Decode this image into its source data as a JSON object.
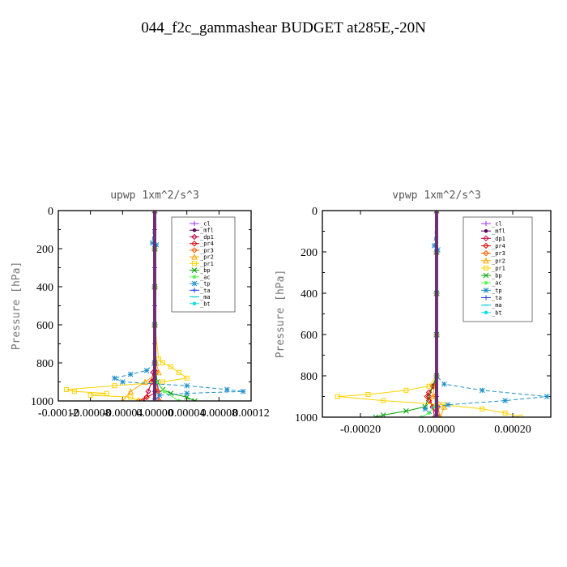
{
  "figure": {
    "title": "044_f2c_gammashear  BUDGET at285E,-20N"
  },
  "legend_entries": [
    {
      "name": "_cl",
      "color": "#9B30FF",
      "marker": "plus"
    },
    {
      "name": "_mfl",
      "color": "#5A005A",
      "marker": "dot"
    },
    {
      "name": "_dp1",
      "color": "#C00040",
      "marker": "diamond"
    },
    {
      "name": "_pr4",
      "color": "#E00000",
      "marker": "diamond"
    },
    {
      "name": "_pr3",
      "color": "#FF5A00",
      "marker": "diamond"
    },
    {
      "name": "_pr2",
      "color": "#FFA500",
      "marker": "triangle"
    },
    {
      "name": "_pr1",
      "color": "#FFD200",
      "marker": "square"
    },
    {
      "name": "_bp",
      "color": "#00A000",
      "marker": "x"
    },
    {
      "name": "_ac",
      "color": "#50FF50",
      "marker": "dot"
    },
    {
      "name": "_tp",
      "color": "#1E90C8",
      "marker": "star"
    },
    {
      "name": "_ta",
      "color": "#1E3CFF",
      "marker": "plus"
    },
    {
      "name": "_ma",
      "color": "#00C8C8",
      "marker": "dash"
    },
    {
      "name": "_bt",
      "color": "#00E0E0",
      "marker": "dot"
    }
  ],
  "chart_data": [
    {
      "type": "line",
      "title": "upwp   1xm^2/s^3",
      "ylabel": "Pressure [hPa]",
      "xlabel": "",
      "xlim": [
        -0.00012,
        0.00012
      ],
      "ylim": [
        1000,
        0
      ],
      "x_tick_labels": [
        "-0.00012",
        "-0.00008",
        "-0.00004",
        "0.00000",
        "0.00004",
        "0.00008",
        "0.00012"
      ],
      "x_ticks": [
        -0.00012,
        -8e-05,
        -4e-05,
        0.0,
        4e-05,
        8e-05,
        0.00012
      ],
      "y_ticks": [
        0,
        200,
        400,
        600,
        800,
        1000
      ],
      "legend_position": "top-right",
      "series": [
        {
          "name": "_cl",
          "y": [
            0,
            100,
            200,
            300,
            400,
            500,
            600,
            700,
            800,
            900,
            950,
            1000
          ],
          "x": [
            0,
            0,
            0,
            0,
            0,
            0,
            0,
            0,
            0,
            3e-06,
            5e-06,
            4e-06
          ]
        },
        {
          "name": "_mfl",
          "y": [
            0,
            200,
            400,
            600,
            800,
            900,
            950,
            1000
          ],
          "x": [
            0,
            0,
            0,
            0,
            0,
            0,
            0,
            0
          ]
        },
        {
          "name": "_dp1",
          "y": [
            0,
            200,
            400,
            600,
            800,
            850,
            900,
            950,
            980,
            1000
          ],
          "x": [
            0,
            0,
            0,
            0,
            0,
            -2e-06,
            -4e-06,
            -8e-06,
            -1e-05,
            -1.5e-05
          ]
        },
        {
          "name": "_pr4",
          "y": [
            0,
            200,
            400,
            600,
            800,
            850,
            900,
            950,
            980,
            1000
          ],
          "x": [
            0,
            0,
            0,
            0,
            0,
            2e-06,
            -4e-06,
            4e-06,
            -1e-05,
            -2e-05
          ]
        },
        {
          "name": "_pr3",
          "y": [
            0,
            200,
            400,
            600,
            800,
            900,
            950,
            1000
          ],
          "x": [
            0,
            0,
            0,
            0,
            0,
            2e-06,
            4e-06,
            6e-06
          ]
        },
        {
          "name": "_pr2",
          "y": [
            0,
            200,
            400,
            600,
            800,
            850,
            900,
            950,
            1000
          ],
          "x": [
            0,
            0,
            0,
            0,
            2e-06,
            5e-06,
            -1.2e-05,
            -3e-05,
            -4e-05
          ]
        },
        {
          "name": "_pr1",
          "y": [
            0,
            200,
            400,
            600,
            780,
            800,
            820,
            850,
            880,
            900,
            920,
            940,
            950,
            960,
            970,
            980,
            1000
          ],
          "x": [
            0,
            0,
            0,
            0,
            5e-06,
            1e-05,
            2e-05,
            3e-05,
            4e-05,
            1e-05,
            -5e-05,
            -0.00011,
            -0.0001,
            -6e-05,
            -8e-05,
            -3e-05,
            -2e-05
          ]
        },
        {
          "name": "_bp",
          "y": [
            0,
            200,
            400,
            600,
            800,
            900,
            940,
            960,
            980,
            1000
          ],
          "x": [
            0,
            0,
            0,
            0,
            0,
            3e-06,
            1e-05,
            2e-05,
            4e-05,
            5e-05
          ]
        },
        {
          "name": "_ac",
          "y": [
            0,
            200,
            400,
            600,
            800,
            900,
            950,
            1000
          ],
          "x": [
            0,
            0,
            0,
            0,
            0,
            2e-06,
            1.2e-05,
            3e-05
          ]
        },
        {
          "name": "_tp",
          "y": [
            0,
            170,
            180,
            200,
            400,
            600,
            800,
            840,
            860,
            880,
            900,
            920,
            940,
            950,
            960,
            970,
            1000
          ],
          "x": [
            0,
            -3e-06,
            2e-06,
            0,
            0,
            0,
            0,
            -1e-05,
            -3e-05,
            -5e-05,
            -4e-05,
            4e-05,
            9e-05,
            0.00011,
            4e-05,
            6e-06,
            0
          ]
        },
        {
          "name": "_ta",
          "y": [
            0,
            200,
            400,
            600,
            800,
            900,
            950,
            1000
          ],
          "x": [
            0,
            0,
            0,
            0,
            0,
            0,
            0,
            0
          ]
        },
        {
          "name": "_ma",
          "y": [
            0,
            200,
            400,
            600,
            800,
            1000
          ],
          "x": [
            0,
            0,
            0,
            0,
            0,
            0
          ]
        },
        {
          "name": "_bt",
          "y": [
            0,
            200,
            400,
            600,
            800,
            1000
          ],
          "x": [
            0,
            0,
            0,
            0,
            0,
            0
          ]
        }
      ]
    },
    {
      "type": "line",
      "title": "vpwp   1xm^2/s^3",
      "ylabel": "Pressure [hPa]",
      "xlabel": "",
      "xlim": [
        -0.0003,
        0.0003
      ],
      "ylim": [
        1000,
        0
      ],
      "x_tick_labels": [
        "-0.00020",
        "0.00000",
        "0.00020"
      ],
      "x_ticks": [
        -0.0002,
        0.0,
        0.0002
      ],
      "y_ticks": [
        0,
        200,
        400,
        600,
        800,
        1000
      ],
      "legend_position": "top-right",
      "series": [
        {
          "name": "_cl",
          "y": [
            0,
            200,
            400,
            600,
            800,
            900,
            950,
            1000
          ],
          "x": [
            0,
            0,
            0,
            0,
            0,
            0,
            4e-06,
            8e-06
          ]
        },
        {
          "name": "_mfl",
          "y": [
            0,
            200,
            400,
            600,
            800,
            1000
          ],
          "x": [
            0,
            0,
            0,
            0,
            0,
            0
          ]
        },
        {
          "name": "_dp1",
          "y": [
            0,
            200,
            400,
            600,
            800,
            850,
            900,
            950,
            1000
          ],
          "x": [
            0,
            0,
            0,
            0,
            0,
            -1e-05,
            -2e-05,
            -1e-05,
            3e-06
          ]
        },
        {
          "name": "_pr4",
          "y": [
            0,
            200,
            400,
            600,
            800,
            850,
            880,
            900,
            920,
            950,
            1000
          ],
          "x": [
            0,
            0,
            0,
            0,
            0,
            -8e-06,
            -2e-05,
            -2.5e-05,
            -2e-05,
            -1e-05,
            -5e-06
          ]
        },
        {
          "name": "_pr3",
          "y": [
            0,
            200,
            400,
            600,
            800,
            900,
            950,
            1000
          ],
          "x": [
            0,
            0,
            0,
            0,
            0,
            -4e-06,
            4e-06,
            8e-06
          ]
        },
        {
          "name": "_pr2",
          "y": [
            0,
            200,
            400,
            600,
            800,
            900,
            950,
            1000
          ],
          "x": [
            0,
            0,
            0,
            0,
            0,
            -1e-05,
            2e-05,
            1e-05
          ]
        },
        {
          "name": "_pr1",
          "y": [
            0,
            200,
            400,
            600,
            800,
            850,
            870,
            890,
            900,
            920,
            940,
            960,
            980,
            1000
          ],
          "x": [
            0,
            0,
            0,
            0,
            0,
            -2e-05,
            -8e-05,
            -0.00018,
            -0.00026,
            -0.00014,
            2e-05,
            0.00012,
            0.00018,
            0.00022
          ]
        },
        {
          "name": "_bp",
          "y": [
            0,
            200,
            400,
            600,
            800,
            950,
            970,
            990,
            1000
          ],
          "x": [
            0,
            0,
            0,
            0,
            0,
            -3e-05,
            -8e-05,
            -0.00014,
            -0.00016
          ]
        },
        {
          "name": "_ac",
          "y": [
            0,
            200,
            400,
            600,
            800,
            950,
            980,
            1000
          ],
          "x": [
            0,
            0,
            0,
            0,
            0,
            -5e-06,
            -2e-05,
            -4e-05
          ]
        },
        {
          "name": "_tp",
          "y": [
            0,
            170,
            190,
            200,
            400,
            600,
            800,
            840,
            870,
            900,
            920,
            940,
            960,
            1000
          ],
          "x": [
            0,
            -6e-06,
            3e-06,
            0,
            0,
            0,
            0,
            2e-05,
            0.00012,
            0.00029,
            0.00018,
            3e-05,
            -3e-05,
            0
          ]
        },
        {
          "name": "_ta",
          "y": [
            0,
            200,
            400,
            600,
            800,
            1000
          ],
          "x": [
            0,
            0,
            0,
            0,
            0,
            0
          ]
        },
        {
          "name": "_ma",
          "y": [
            0,
            200,
            400,
            600,
            800,
            1000
          ],
          "x": [
            0,
            0,
            0,
            0,
            0,
            0
          ]
        },
        {
          "name": "_bt",
          "y": [
            0,
            200,
            400,
            600,
            800,
            1000
          ],
          "x": [
            0,
            0,
            0,
            0,
            0,
            0
          ]
        }
      ]
    }
  ]
}
